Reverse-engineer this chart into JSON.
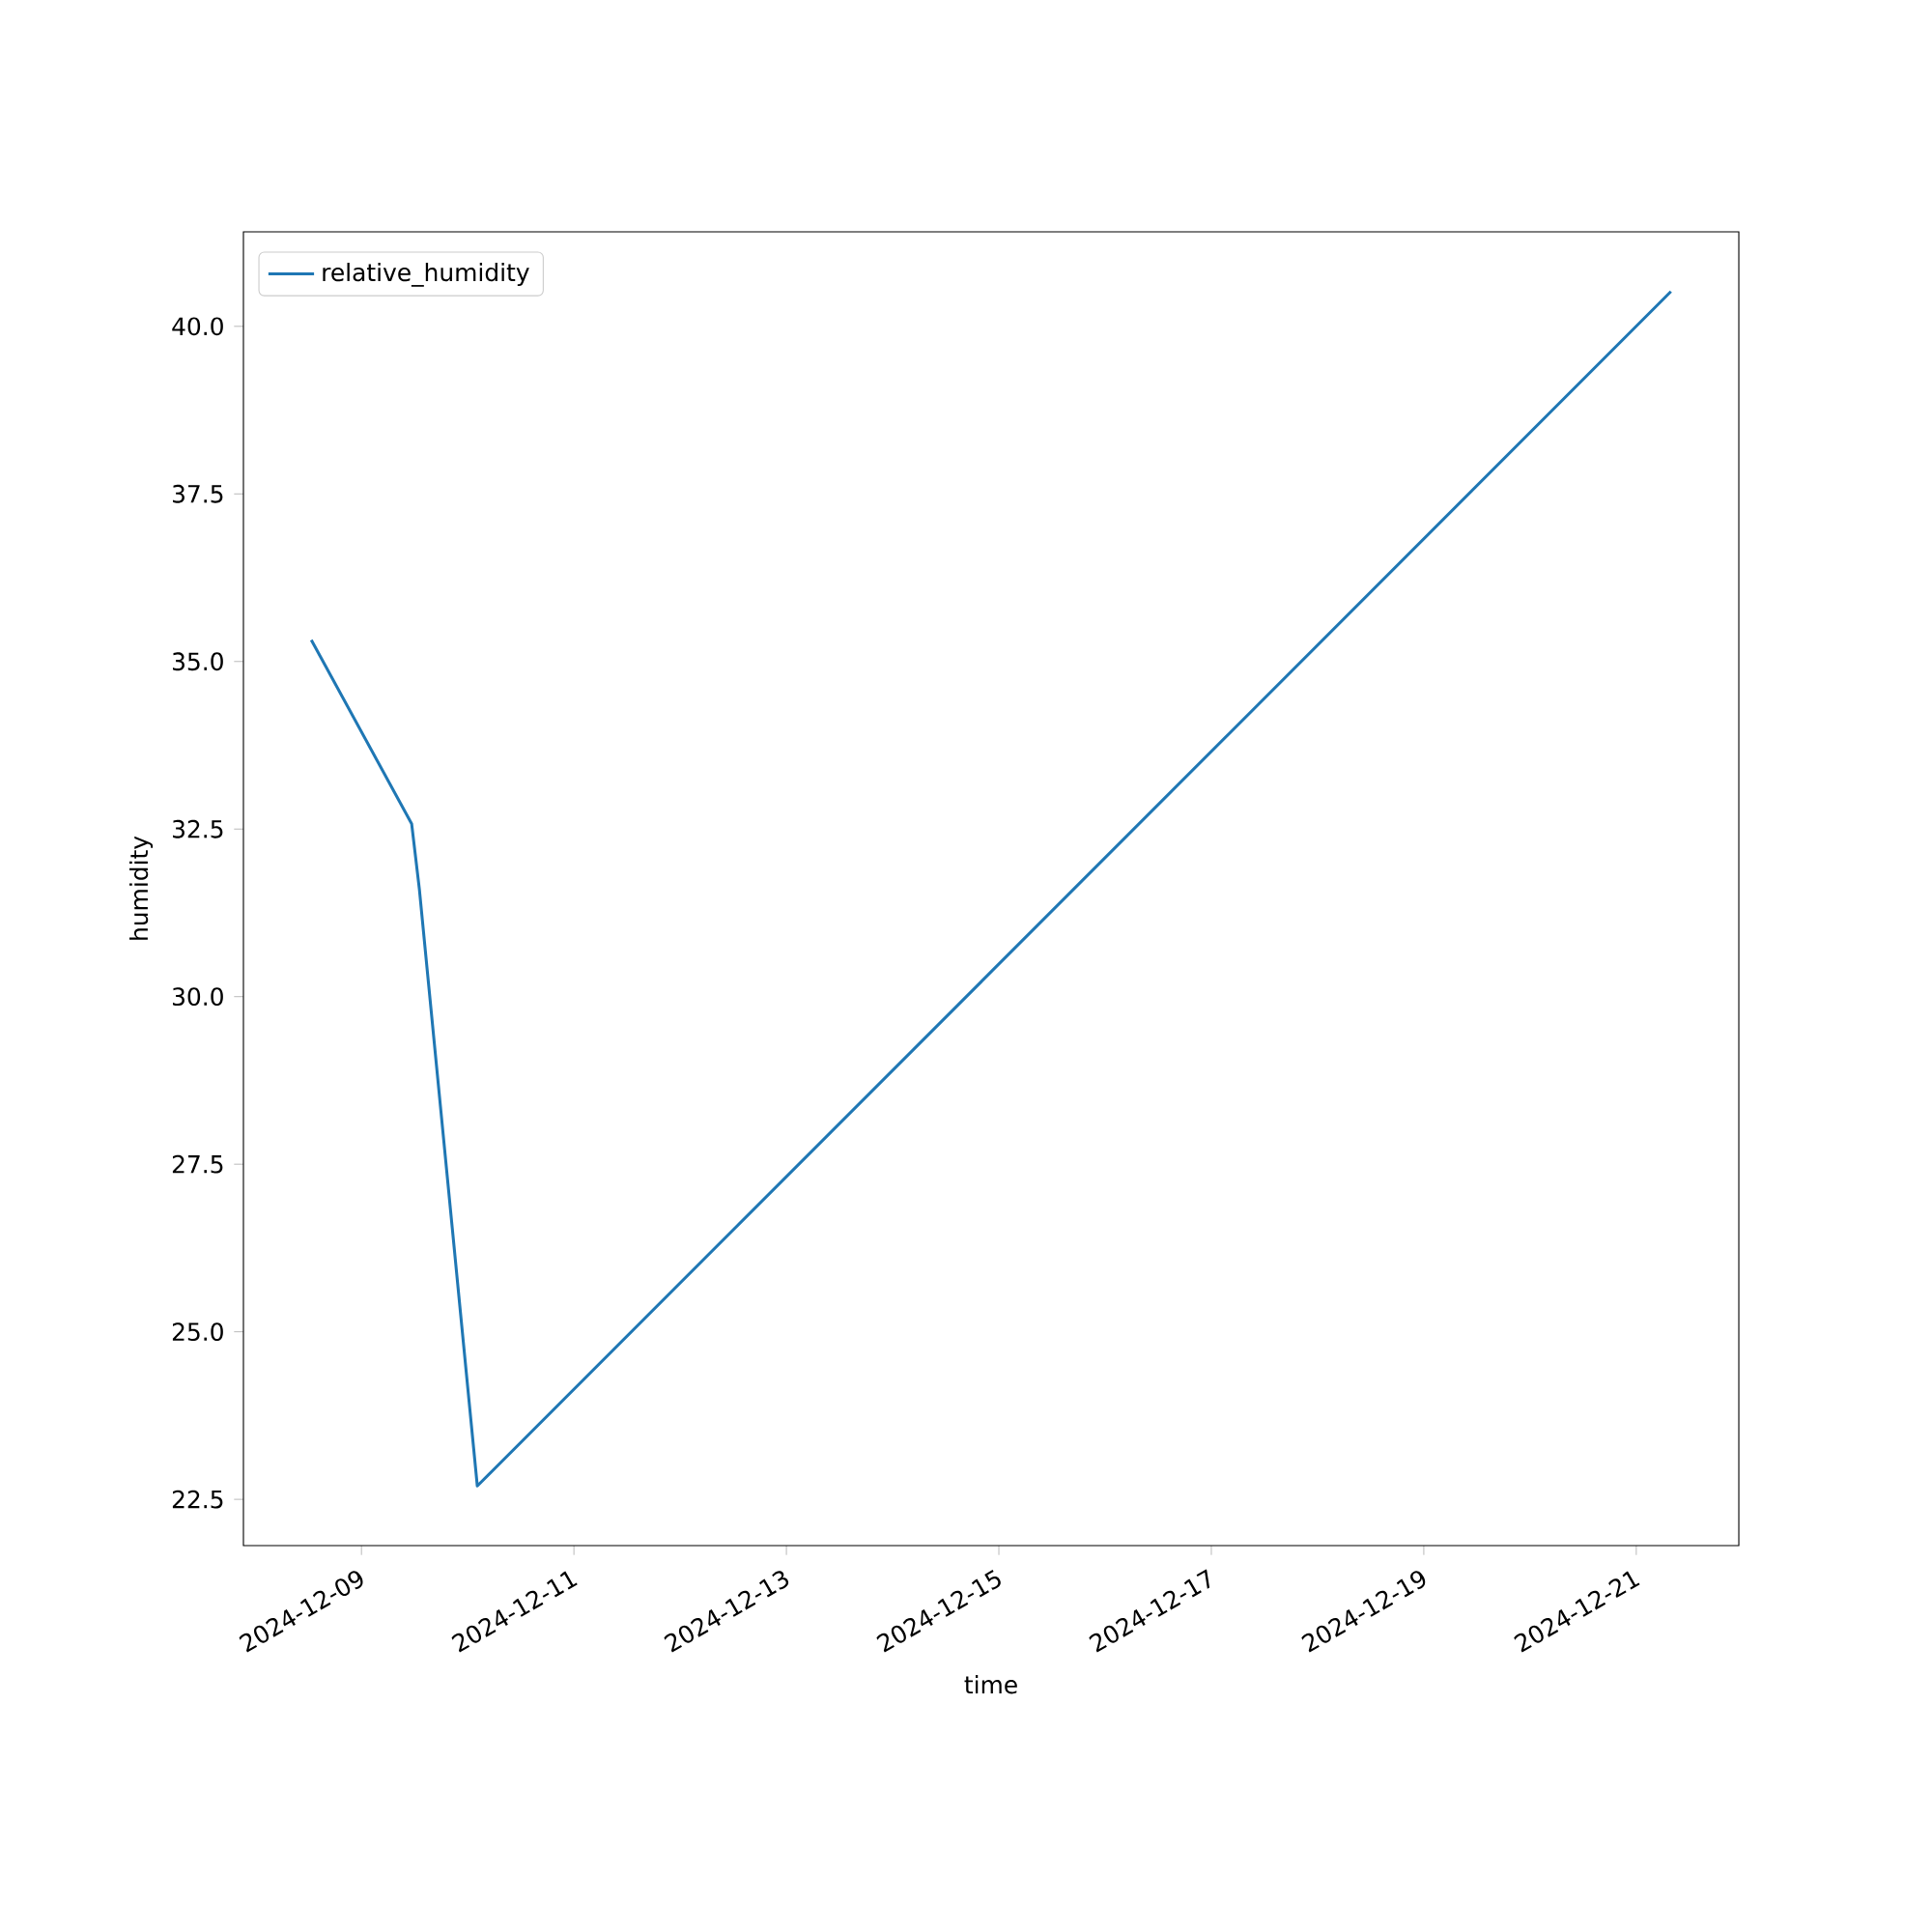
{
  "chart_data": {
    "type": "line",
    "xlabel": "time",
    "ylabel": "humidity",
    "x": [
      "2024-12-08T12:40",
      "2024-12-09T11:20",
      "2024-12-09T13:05",
      "2024-12-10T02:10",
      "2024-12-21T07:50"
    ],
    "series": [
      {
        "name": "relative_humidity",
        "color": "#1f77b4",
        "values": [
          35.32,
          32.58,
          31.6,
          22.7,
          40.52
        ]
      }
    ],
    "xlim": [
      "2024-12-07T21:20",
      "2024-12-21T23:10"
    ],
    "ylim": [
      21.81,
      41.41
    ],
    "xticks": [
      "2024-12-09",
      "2024-12-11",
      "2024-12-13",
      "2024-12-15",
      "2024-12-17",
      "2024-12-19",
      "2024-12-21"
    ],
    "yticks": [
      {
        "value": 22.5,
        "label": "22.5"
      },
      {
        "value": 25,
        "label": "25.0"
      },
      {
        "value": 27.5,
        "label": "27.5"
      },
      {
        "value": 30,
        "label": "30.0"
      },
      {
        "value": 32.5,
        "label": "32.5"
      },
      {
        "value": 35,
        "label": "35.0"
      },
      {
        "value": 37.5,
        "label": "37.5"
      },
      {
        "value": 40,
        "label": "40.0"
      }
    ],
    "legend": "top left",
    "grid": false
  }
}
